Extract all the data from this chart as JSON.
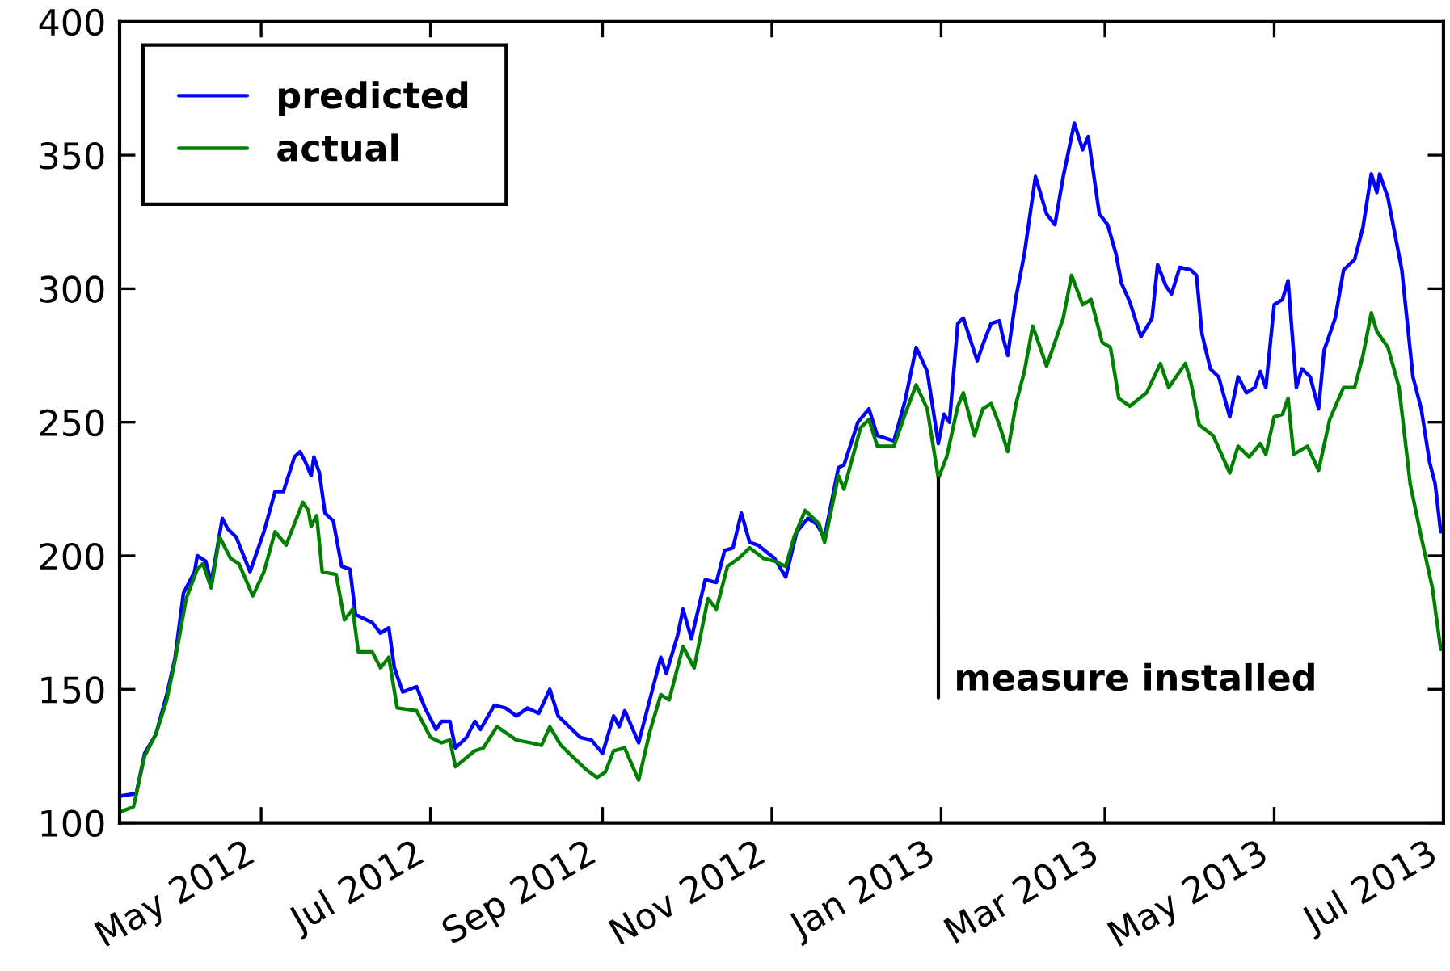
{
  "chart_data": {
    "type": "line",
    "xlim": [
      "2012-03-11",
      "2013-07-01"
    ],
    "xticks": [
      {
        "value": "2012-05-01",
        "label": "May 2012"
      },
      {
        "value": "2012-07-01",
        "label": "Jul 2012"
      },
      {
        "value": "2012-09-01",
        "label": "Sep 2012"
      },
      {
        "value": "2012-11-01",
        "label": "Nov 2012"
      },
      {
        "value": "2013-01-01",
        "label": "Jan 2013"
      },
      {
        "value": "2013-03-01",
        "label": "Mar 2013"
      },
      {
        "value": "2013-05-01",
        "label": "May 2013"
      },
      {
        "value": "2013-07-01",
        "label": "Jul 2013"
      }
    ],
    "ylim": [
      100,
      400
    ],
    "yticks": [
      100,
      150,
      200,
      250,
      300,
      350,
      400
    ],
    "legend": "top left",
    "annotations": [
      {
        "text": "measure installed",
        "x": "2012-12-31",
        "y": 229
      }
    ],
    "series": [
      {
        "name": "predicted",
        "color": "#0000ff",
        "x": [
          "2012-03-11",
          "2012-03-17",
          "2012-03-20",
          "2012-03-24",
          "2012-03-28",
          "2012-03-31",
          "2012-04-03",
          "2012-04-07",
          "2012-04-08",
          "2012-04-11",
          "2012-04-13",
          "2012-04-17",
          "2012-04-19",
          "2012-04-22",
          "2012-04-27",
          "2012-05-02",
          "2012-05-06",
          "2012-05-09",
          "2012-05-13",
          "2012-05-15",
          "2012-05-17",
          "2012-05-19",
          "2012-05-20",
          "2012-05-22",
          "2012-05-24",
          "2012-05-27",
          "2012-05-30",
          "2012-06-02",
          "2012-06-04",
          "2012-06-10",
          "2012-06-13",
          "2012-06-16",
          "2012-06-18",
          "2012-06-21",
          "2012-06-26",
          "2012-06-29",
          "2012-07-03",
          "2012-07-05",
          "2012-07-08",
          "2012-07-10",
          "2012-07-14",
          "2012-07-17",
          "2012-07-19",
          "2012-07-24",
          "2012-07-28",
          "2012-08-01",
          "2012-08-05",
          "2012-08-09",
          "2012-08-13",
          "2012-08-16",
          "2012-08-20",
          "2012-08-24",
          "2012-08-28",
          "2012-09-01",
          "2012-09-05",
          "2012-09-07",
          "2012-09-09",
          "2012-09-14",
          "2012-09-18",
          "2012-09-22",
          "2012-09-24",
          "2012-09-28",
          "2012-09-30",
          "2012-10-03",
          "2012-10-08",
          "2012-10-12",
          "2012-10-15",
          "2012-10-18",
          "2012-10-21",
          "2012-10-24",
          "2012-10-27",
          "2012-11-02",
          "2012-11-06",
          "2012-11-10",
          "2012-11-14",
          "2012-11-17",
          "2012-11-20",
          "2012-11-25",
          "2012-11-27",
          "2012-12-02",
          "2012-12-06",
          "2012-12-09",
          "2012-12-15",
          "2012-12-19",
          "2012-12-23",
          "2012-12-27",
          "2012-12-31",
          "2013-01-02",
          "2013-01-04",
          "2013-01-07",
          "2013-01-09",
          "2013-01-14",
          "2013-01-16",
          "2013-01-19",
          "2013-01-22",
          "2013-01-23",
          "2013-01-25",
          "2013-01-28",
          "2013-01-31",
          "2013-02-04",
          "2013-02-08",
          "2013-02-11",
          "2013-02-14",
          "2013-02-18",
          "2013-02-21",
          "2013-02-23",
          "2013-02-27",
          "2013-03-02",
          "2013-03-05",
          "2013-03-07",
          "2013-03-10",
          "2013-03-14",
          "2013-03-18",
          "2013-03-20",
          "2013-03-23",
          "2013-03-25",
          "2013-03-28",
          "2013-04-01",
          "2013-04-03",
          "2013-04-05",
          "2013-04-08",
          "2013-04-11",
          "2013-04-15",
          "2013-04-18",
          "2013-04-21",
          "2013-04-24",
          "2013-04-26",
          "2013-04-28",
          "2013-05-01",
          "2013-05-04",
          "2013-05-06",
          "2013-05-09",
          "2013-05-11",
          "2013-05-14",
          "2013-05-17",
          "2013-05-19",
          "2013-05-23",
          "2013-05-26",
          "2013-05-30",
          "2013-06-02",
          "2013-06-05",
          "2013-06-07",
          "2013-06-08",
          "2013-06-11",
          "2013-06-16",
          "2013-06-20",
          "2013-06-23",
          "2013-06-26",
          "2013-06-28",
          "2013-06-30"
        ],
        "values": [
          110,
          111,
          126,
          133,
          148,
          162,
          186,
          194,
          200,
          198,
          190,
          214,
          210,
          207,
          194,
          209,
          224,
          224,
          237,
          239,
          235,
          230,
          237,
          231,
          216,
          213,
          196,
          195,
          178,
          175,
          171,
          173,
          158,
          149,
          151,
          143,
          135,
          138,
          138,
          128,
          132,
          138,
          135,
          144,
          143,
          140,
          143,
          141,
          150,
          140,
          136,
          132,
          131,
          126,
          140,
          136,
          142,
          130,
          146,
          162,
          156,
          170,
          180,
          169,
          191,
          190,
          202,
          203,
          216,
          205,
          204,
          199,
          192,
          209,
          214,
          212,
          207,
          233,
          234,
          250,
          255,
          245,
          243,
          258,
          278,
          269,
          242,
          253,
          250,
          287,
          289,
          273,
          279,
          287,
          288,
          283,
          275,
          297,
          313,
          342,
          328,
          324,
          342,
          362,
          352,
          357,
          328,
          324,
          313,
          302,
          295,
          282,
          289,
          309,
          301,
          298,
          308,
          307,
          305,
          283,
          270,
          267,
          252,
          267,
          261,
          263,
          269,
          263,
          294,
          296,
          303,
          263,
          270,
          267,
          255,
          277,
          289,
          307,
          311,
          323,
          343,
          336,
          343,
          334,
          307,
          267,
          255,
          235,
          227,
          209
        ]
      },
      {
        "name": "actual",
        "color": "#008000",
        "x": [
          "2012-03-11",
          "2012-03-16",
          "2012-03-20",
          "2012-03-24",
          "2012-03-28",
          "2012-03-31",
          "2012-04-04",
          "2012-04-08",
          "2012-04-10",
          "2012-04-13",
          "2012-04-16",
          "2012-04-20",
          "2012-04-23",
          "2012-04-28",
          "2012-05-02",
          "2012-05-06",
          "2012-05-10",
          "2012-05-16",
          "2012-05-18",
          "2012-05-19",
          "2012-05-21",
          "2012-05-23",
          "2012-05-28",
          "2012-05-31",
          "2012-06-03",
          "2012-06-05",
          "2012-06-10",
          "2012-06-13",
          "2012-06-16",
          "2012-06-19",
          "2012-06-26",
          "2012-07-01",
          "2012-07-05",
          "2012-07-08",
          "2012-07-10",
          "2012-07-17",
          "2012-07-20",
          "2012-07-25",
          "2012-08-01",
          "2012-08-06",
          "2012-08-10",
          "2012-08-13",
          "2012-08-17",
          "2012-08-20",
          "2012-08-26",
          "2012-08-30",
          "2012-09-02",
          "2012-09-05",
          "2012-09-09",
          "2012-09-14",
          "2012-09-18",
          "2012-09-22",
          "2012-09-25",
          "2012-09-30",
          "2012-10-04",
          "2012-10-09",
          "2012-10-12",
          "2012-10-16",
          "2012-10-20",
          "2012-10-24",
          "2012-10-29",
          "2012-11-02",
          "2012-11-06",
          "2012-11-09",
          "2012-11-13",
          "2012-11-18",
          "2012-11-20",
          "2012-11-25",
          "2012-11-27",
          "2012-12-03",
          "2012-12-06",
          "2012-12-09",
          "2012-12-15",
          "2012-12-19",
          "2012-12-23",
          "2012-12-27",
          "2012-12-31",
          "2013-01-03",
          "2013-01-07",
          "2013-01-09",
          "2013-01-13",
          "2013-01-16",
          "2013-01-19",
          "2013-01-22",
          "2013-01-25",
          "2013-01-28",
          "2013-01-31",
          "2013-02-03",
          "2013-02-08",
          "2013-02-14",
          "2013-02-17",
          "2013-02-21",
          "2013-02-24",
          "2013-02-28",
          "2013-03-03",
          "2013-03-06",
          "2013-03-10",
          "2013-03-16",
          "2013-03-21",
          "2013-03-24",
          "2013-03-30",
          "2013-04-01",
          "2013-04-04",
          "2013-04-09",
          "2013-04-15",
          "2013-04-18",
          "2013-04-22",
          "2013-04-26",
          "2013-04-28",
          "2013-05-01",
          "2013-05-04",
          "2013-05-06",
          "2013-05-08",
          "2013-05-13",
          "2013-05-17",
          "2013-05-21",
          "2013-05-26",
          "2013-05-30",
          "2013-06-02",
          "2013-06-05",
          "2013-06-07",
          "2013-06-11",
          "2013-06-15",
          "2013-06-19",
          "2013-06-23",
          "2013-06-27",
          "2013-06-30"
        ],
        "values": [
          104,
          106,
          125,
          133,
          146,
          161,
          184,
          195,
          197,
          188,
          207,
          199,
          197,
          185,
          194,
          209,
          204,
          220,
          217,
          211,
          215,
          194,
          193,
          176,
          180,
          164,
          164,
          158,
          162,
          143,
          142,
          132,
          130,
          131,
          121,
          127,
          128,
          136,
          131,
          130,
          129,
          136,
          129,
          126,
          120,
          117,
          119,
          127,
          128,
          116,
          134,
          148,
          146,
          166,
          158,
          184,
          180,
          196,
          199,
          203,
          199,
          198,
          196,
          207,
          217,
          212,
          205,
          230,
          225,
          248,
          251,
          241,
          241,
          253,
          264,
          255,
          229,
          237,
          256,
          261,
          245,
          255,
          257,
          249,
          239,
          257,
          269,
          286,
          271,
          289,
          305,
          294,
          296,
          280,
          278,
          259,
          256,
          261,
          272,
          263,
          272,
          265,
          249,
          245,
          231,
          241,
          237,
          242,
          238,
          252,
          253,
          259,
          238,
          241,
          232,
          251,
          263,
          263,
          275,
          291,
          284,
          278,
          263,
          227,
          207,
          188,
          165
        ]
      }
    ]
  }
}
